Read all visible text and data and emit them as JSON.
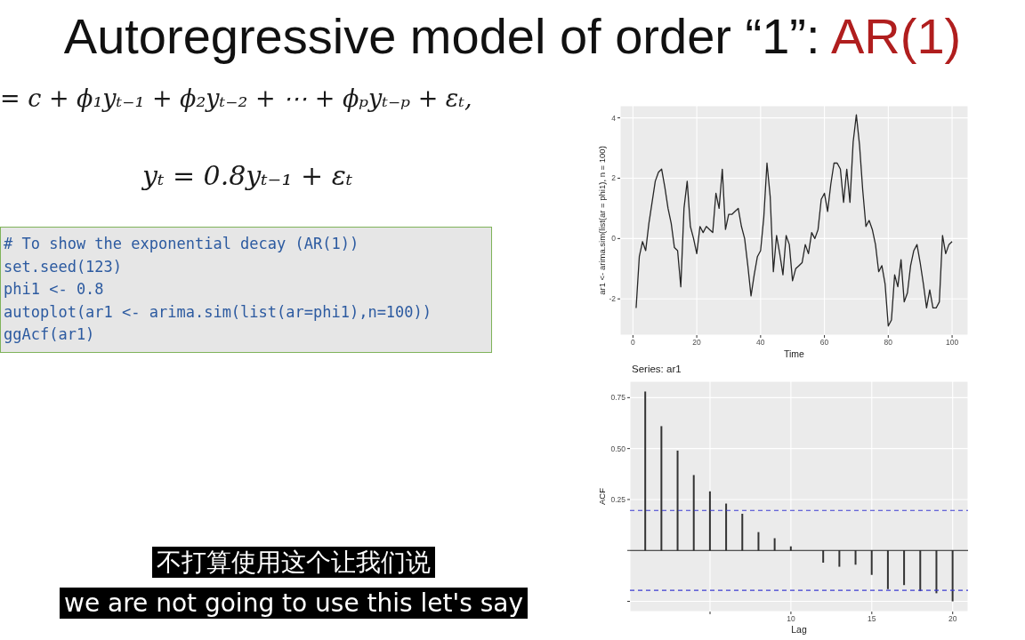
{
  "chart_data": [
    {
      "type": "other",
      "title": "Autoregressive model of order “1”: AR(1)",
      "annotations": [
        "= c + ϕ₁yₜ₋₁ + ϕ₂yₜ₋₂ + ⋯ + ϕₚyₜ₋ₚ + εₜ,",
        "yₜ = 0.8yₜ₋₁ + εₜ",
        "# To show the exponential decay (AR(1))",
        "set.seed(123)",
        "phi1 <- 0.8",
        "autoplot(ar1 <- arima.sim(list(ar=phi1),n=100))",
        "ggAcf(ar1)",
        "不打算使用这个让我们说",
        "we are not going to use this let's say"
      ]
    },
    {
      "type": "line",
      "xlabel": "Time",
      "ylabel": "ar1 <- arima.sim(list(ar = phi1), n = 100)",
      "color": "#262626",
      "grid": true,
      "xlim": [
        -4,
        105
      ],
      "xticks": [
        0,
        20,
        40,
        60,
        80,
        100
      ],
      "ylim": [
        -3.2,
        4.4
      ],
      "yticks": [
        -2,
        0,
        2,
        4
      ],
      "x": [
        1,
        2,
        3,
        4,
        5,
        6,
        7,
        8,
        9,
        10,
        11,
        12,
        13,
        14,
        15,
        16,
        17,
        18,
        19,
        20,
        21,
        22,
        23,
        24,
        25,
        26,
        27,
        28,
        29,
        30,
        31,
        32,
        33,
        34,
        35,
        36,
        37,
        38,
        39,
        40,
        41,
        42,
        43,
        44,
        45,
        46,
        47,
        48,
        49,
        50,
        51,
        52,
        53,
        54,
        55,
        56,
        57,
        58,
        59,
        60,
        61,
        62,
        63,
        64,
        65,
        66,
        67,
        68,
        69,
        70,
        71,
        72,
        73,
        74,
        75,
        76,
        77,
        78,
        79,
        80,
        81,
        82,
        83,
        84,
        85,
        86,
        87,
        88,
        89,
        90,
        91,
        92,
        93,
        94,
        95,
        96,
        97,
        98,
        99,
        100
      ],
      "values": [
        -2.3,
        -0.6,
        -0.1,
        -0.4,
        0.5,
        1.2,
        1.9,
        2.2,
        2.3,
        1.7,
        1.0,
        0.5,
        -0.3,
        -0.4,
        -1.6,
        1.0,
        1.9,
        0.4,
        0.0,
        -0.5,
        0.4,
        0.2,
        0.4,
        0.3,
        0.2,
        1.5,
        1.0,
        2.3,
        0.3,
        0.8,
        0.8,
        0.9,
        1.0,
        0.4,
        0.0,
        -0.9,
        -1.9,
        -1.2,
        -0.6,
        -0.4,
        0.7,
        2.5,
        1.4,
        -1.1,
        0.1,
        -0.5,
        -1.2,
        0.1,
        -0.2,
        -1.4,
        -1.0,
        -0.9,
        -0.8,
        -0.2,
        -0.5,
        0.2,
        0.0,
        0.3,
        1.3,
        1.5,
        0.9,
        1.8,
        2.5,
        2.5,
        2.3,
        1.2,
        2.3,
        1.2,
        3.2,
        4.1,
        3.1,
        1.6,
        0.4,
        0.6,
        0.3,
        -0.2,
        -1.1,
        -0.9,
        -1.5,
        -2.9,
        -2.7,
        -1.2,
        -1.6,
        -0.7,
        -2.1,
        -1.8,
        -0.9,
        -0.4,
        -0.2,
        -0.8,
        -1.5,
        -2.3,
        -1.7,
        -2.3,
        -2.3,
        -2.1,
        0.1,
        -0.5,
        -0.2,
        -0.1
      ]
    },
    {
      "type": "bar",
      "title": "Series: ar1",
      "xlabel": "Lag",
      "ylabel": "ACF",
      "color": "#333333",
      "grid": true,
      "xlim": [
        0.05,
        20.95
      ],
      "xticks": [
        {
          "value": 5,
          "label": null
        },
        10,
        15,
        20
      ],
      "ylim": [
        -0.3,
        0.83
      ],
      "yticks": [
        {
          "value": -0.25,
          "label": null
        },
        {
          "value": 0,
          "label": null
        },
        0.25,
        {
          "value": 0.5,
          "label": "0.50"
        },
        0.75
      ],
      "x": [
        1,
        2,
        3,
        4,
        5,
        6,
        7,
        8,
        9,
        10,
        11,
        12,
        13,
        14,
        15,
        16,
        17,
        18,
        19,
        20
      ],
      "values": [
        0.78,
        0.61,
        0.49,
        0.37,
        0.29,
        0.23,
        0.18,
        0.09,
        0.06,
        0.02,
        0.0,
        -0.06,
        -0.08,
        -0.07,
        -0.12,
        -0.19,
        -0.17,
        -0.2,
        -0.21,
        -0.25
      ],
      "ref_lines": [
        {
          "axis": "y",
          "value": 0,
          "color": "#1a1a1a"
        },
        {
          "axis": "y",
          "value": 0.196,
          "color": "#3b3bd1",
          "line_style": "dashed"
        },
        {
          "axis": "y",
          "value": -0.196,
          "color": "#3b3bd1",
          "line_style": "dashed"
        }
      ]
    }
  ]
}
